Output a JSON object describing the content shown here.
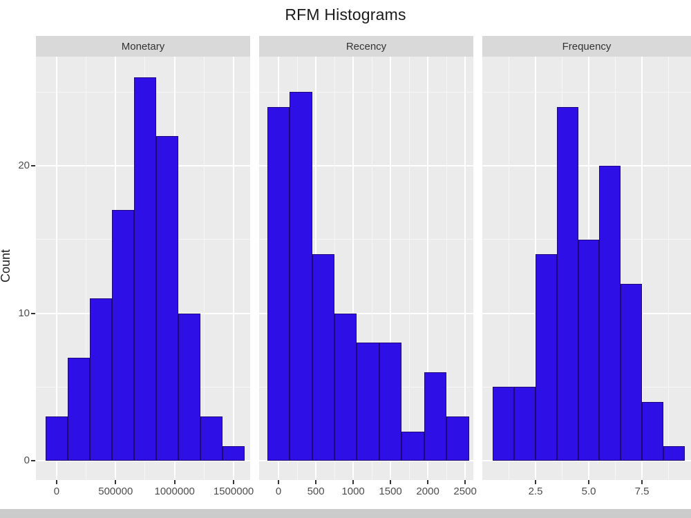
{
  "chart_data": {
    "type": "bar",
    "subtype": "faceted-histogram",
    "title": "RFM Histograms",
    "ylabel": "Count",
    "ylim": [
      -1.3,
      27.4
    ],
    "y_major_ticks": [
      0,
      10,
      20
    ],
    "y_minor_gridlines": [
      5,
      15,
      25
    ],
    "legend": "none",
    "colors": {
      "bar_fill": "#2e0fe6",
      "bar_border": "#1f0875",
      "panel_bg": "#ebebeb",
      "strip_bg": "#d9d9d9",
      "grid_major": "#ffffff",
      "grid_minor": "#f6f6f6"
    },
    "facets": [
      {
        "label": "Monetary",
        "xlim": [
          -175000,
          1640000
        ],
        "bin_width": 187500,
        "x_ticks": [
          {
            "value": 0,
            "label": "0"
          },
          {
            "value": 500000,
            "label": "500000"
          },
          {
            "value": 1000000,
            "label": "1000000"
          },
          {
            "value": 1500000,
            "label": "1500000"
          }
        ],
        "x_minor_gridlines": [
          250000,
          750000,
          1250000
        ],
        "bin_centers": [
          0,
          187500,
          375000,
          562500,
          750000,
          937500,
          1125000,
          1312500,
          1500000
        ],
        "counts": [
          3,
          7,
          11,
          17,
          26,
          22,
          10,
          3,
          1
        ]
      },
      {
        "label": "Recency",
        "xlim": [
          -260,
          2610
        ],
        "bin_width": 300,
        "x_ticks": [
          {
            "value": 0,
            "label": "0"
          },
          {
            "value": 500,
            "label": "500"
          },
          {
            "value": 1000,
            "label": "1000"
          },
          {
            "value": 1500,
            "label": "1500"
          },
          {
            "value": 2000,
            "label": "2000"
          },
          {
            "value": 2500,
            "label": "2500"
          }
        ],
        "x_minor_gridlines": [
          250,
          750,
          1250,
          1750,
          2250
        ],
        "bin_centers": [
          0,
          300,
          600,
          900,
          1200,
          1500,
          1800,
          2100,
          2400
        ],
        "counts": [
          24,
          25,
          14,
          10,
          8,
          8,
          2,
          6,
          3
        ]
      },
      {
        "label": "Frequency",
        "xlim": [
          0,
          9.8
        ],
        "bin_width": 1,
        "x_ticks": [
          {
            "value": 2.5,
            "label": "2.5"
          },
          {
            "value": 5,
            "label": "5.0"
          },
          {
            "value": 7.5,
            "label": "7.5"
          }
        ],
        "x_minor_gridlines": [
          1.25,
          3.75,
          6.25,
          8.75
        ],
        "bin_centers": [
          1,
          2,
          3,
          4,
          5,
          6,
          7,
          8,
          9
        ],
        "counts": [
          5,
          5,
          14,
          24,
          15,
          20,
          12,
          4,
          1
        ]
      }
    ]
  }
}
